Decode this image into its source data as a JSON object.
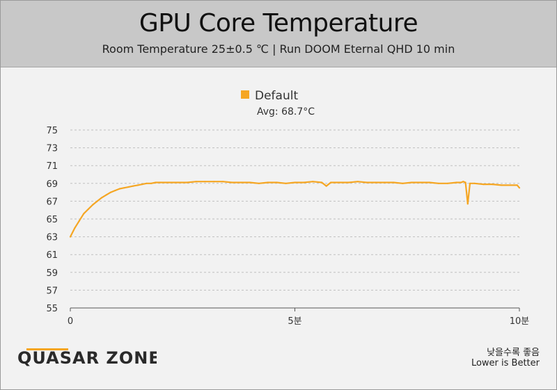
{
  "title": "GPU Core Temperature",
  "subtitle": "Room Temperature 25±0.5 ℃  |  Run DOOM Eternal QHD 10 min",
  "brand": "QUASAR ZONE",
  "notes": {
    "korean": "낮을수록 좋음",
    "english": "Lower is Better"
  },
  "colors": {
    "series": "#f5a623",
    "grid": "#bfbfbf",
    "axis": "#555555",
    "background": "#f2f2f2"
  },
  "chart_data": {
    "type": "line",
    "title": "GPU Core Temperature",
    "subtitle": "Room Temperature 25±0.5 ℃  |  Run DOOM Eternal QHD 10 min",
    "xlabel": "",
    "ylabel": "",
    "xlim": [
      0,
      10
    ],
    "ylim": [
      55,
      75
    ],
    "grid": true,
    "legend_position": "top-center",
    "x_ticks": [
      {
        "value": 0,
        "label": "0"
      },
      {
        "value": 5,
        "label": "5분"
      },
      {
        "value": 10,
        "label": "10분"
      }
    ],
    "y_ticks": [
      55,
      57,
      59,
      61,
      63,
      65,
      67,
      69,
      71,
      73,
      75
    ],
    "series": [
      {
        "name": "Default",
        "annotation": "Avg: 68.7°C",
        "color": "#f5a623",
        "x": [
          0,
          0.1,
          0.2,
          0.3,
          0.4,
          0.5,
          0.6,
          0.7,
          0.8,
          0.9,
          1.0,
          1.1,
          1.2,
          1.3,
          1.4,
          1.5,
          1.6,
          1.7,
          1.8,
          1.9,
          2.0,
          2.2,
          2.4,
          2.6,
          2.8,
          3.0,
          3.2,
          3.4,
          3.6,
          3.8,
          4.0,
          4.2,
          4.4,
          4.6,
          4.8,
          5.0,
          5.2,
          5.4,
          5.6,
          5.7,
          5.8,
          6.0,
          6.2,
          6.4,
          6.6,
          6.8,
          7.0,
          7.2,
          7.4,
          7.6,
          7.8,
          8.0,
          8.2,
          8.4,
          8.6,
          8.7,
          8.75,
          8.8,
          8.85,
          8.9,
          9.0,
          9.2,
          9.4,
          9.6,
          9.8,
          9.95,
          10.0
        ],
        "y": [
          63.0,
          64.0,
          64.8,
          65.6,
          66.1,
          66.6,
          67.0,
          67.4,
          67.7,
          68.0,
          68.2,
          68.4,
          68.5,
          68.6,
          68.7,
          68.8,
          68.9,
          69.0,
          69.0,
          69.1,
          69.1,
          69.1,
          69.1,
          69.1,
          69.2,
          69.2,
          69.2,
          69.2,
          69.1,
          69.1,
          69.1,
          69.0,
          69.1,
          69.1,
          69.0,
          69.1,
          69.1,
          69.2,
          69.1,
          68.7,
          69.1,
          69.1,
          69.1,
          69.2,
          69.1,
          69.1,
          69.1,
          69.1,
          69.0,
          69.1,
          69.1,
          69.1,
          69.0,
          69.0,
          69.1,
          69.1,
          69.2,
          69.1,
          66.7,
          69.0,
          69.0,
          68.9,
          68.9,
          68.8,
          68.8,
          68.8,
          68.5
        ]
      }
    ]
  }
}
